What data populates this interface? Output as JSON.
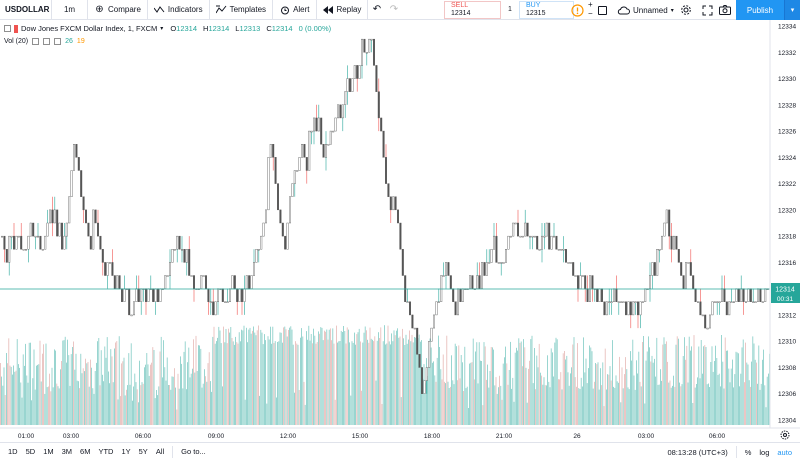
{
  "toolbar": {
    "symbol": "USDOLLAR",
    "interval": "1m",
    "compare": "Compare",
    "indicators": "Indicators",
    "templates": "Templates",
    "alert": "Alert",
    "replay": "Replay",
    "sell_label": "SELL",
    "sell_price": "12314",
    "spread": "1",
    "buy_label": "BUY",
    "buy_price": "12315",
    "layout_name": "Unnamed",
    "publish": "Publish"
  },
  "legend": {
    "title": "Dow Jones FXCM Dollar Index, 1, FXCM",
    "o_label": "O",
    "o": "12314",
    "h_label": "H",
    "h": "12314",
    "l_label": "L",
    "l": "12313",
    "c_label": "C",
    "c": "12314",
    "change": "0 (0.00%)",
    "vol_label": "Vol (20)",
    "vol_val1": "26",
    "vol_val2": "19"
  },
  "price_axis": {
    "ticks": [
      "12334",
      "12332",
      "12330",
      "12328",
      "12326",
      "12324",
      "12322",
      "12320",
      "12318",
      "12316",
      "12314",
      "12312",
      "12310",
      "12308",
      "12306",
      "12304"
    ],
    "current_price": "12314",
    "countdown": "00:31"
  },
  "time_axis": {
    "ticks": [
      "01:00",
      "03:00",
      "06:00",
      "09:00",
      "12:00",
      "15:00",
      "18:00",
      "21:00",
      "26",
      "03:00",
      "06:00"
    ]
  },
  "chart_data": {
    "type": "candlestick",
    "ylim": [
      12303,
      12335
    ],
    "last_price": 12314,
    "close_path": [
      [
        0,
        12318
      ],
      [
        6,
        12317
      ],
      [
        12,
        12318
      ],
      [
        18,
        12318
      ],
      [
        24,
        12317
      ],
      [
        30,
        12318
      ],
      [
        36,
        12318
      ],
      [
        42,
        12317
      ],
      [
        46,
        12318
      ],
      [
        50,
        12320
      ],
      [
        54,
        12319
      ],
      [
        58,
        12318
      ],
      [
        62,
        12317
      ],
      [
        66,
        12318
      ],
      [
        70,
        12322
      ],
      [
        74,
        12325
      ],
      [
        78,
        12323
      ],
      [
        82,
        12321
      ],
      [
        86,
        12319
      ],
      [
        90,
        12318
      ],
      [
        94,
        12320
      ],
      [
        98,
        12318
      ],
      [
        102,
        12317
      ],
      [
        106,
        12316
      ],
      [
        110,
        12316
      ],
      [
        114,
        12314
      ],
      [
        118,
        12315
      ],
      [
        122,
        12313
      ],
      [
        126,
        12314
      ],
      [
        130,
        12312
      ],
      [
        134,
        12313
      ],
      [
        138,
        12314
      ],
      [
        142,
        12314
      ],
      [
        146,
        12313
      ],
      [
        150,
        12314
      ],
      [
        154,
        12314
      ],
      [
        158,
        12313
      ],
      [
        162,
        12314
      ],
      [
        166,
        12315
      ],
      [
        170,
        12316
      ],
      [
        174,
        12317
      ],
      [
        178,
        12318
      ],
      [
        182,
        12317
      ],
      [
        186,
        12316
      ],
      [
        190,
        12315
      ],
      [
        194,
        12314
      ],
      [
        198,
        12314
      ],
      [
        202,
        12315
      ],
      [
        206,
        12314
      ],
      [
        210,
        12313
      ],
      [
        214,
        12312
      ],
      [
        218,
        12314
      ],
      [
        222,
        12314
      ],
      [
        226,
        12313
      ],
      [
        230,
        12314
      ],
      [
        234,
        12315
      ],
      [
        238,
        12314
      ],
      [
        242,
        12313
      ],
      [
        246,
        12314
      ],
      [
        250,
        12315
      ],
      [
        254,
        12316
      ],
      [
        258,
        12317
      ],
      [
        262,
        12318
      ],
      [
        266,
        12320
      ],
      [
        270,
        12326
      ],
      [
        274,
        12323
      ],
      [
        278,
        12320
      ],
      [
        282,
        12318
      ],
      [
        286,
        12318
      ],
      [
        290,
        12321
      ],
      [
        294,
        12322
      ],
      [
        298,
        12323
      ],
      [
        302,
        12325
      ],
      [
        306,
        12324
      ],
      [
        310,
        12326
      ],
      [
        314,
        12327
      ],
      [
        318,
        12326
      ],
      [
        322,
        12325
      ],
      [
        326,
        12324
      ],
      [
        330,
        12325
      ],
      [
        334,
        12326
      ],
      [
        338,
        12328
      ],
      [
        342,
        12327
      ],
      [
        346,
        12330
      ],
      [
        350,
        12329
      ],
      [
        354,
        12331
      ],
      [
        358,
        12330
      ],
      [
        362,
        12333
      ],
      [
        366,
        12331
      ],
      [
        370,
        12334
      ],
      [
        374,
        12331
      ],
      [
        378,
        12328
      ],
      [
        382,
        12325
      ],
      [
        386,
        12322
      ],
      [
        390,
        12320
      ],
      [
        394,
        12321
      ],
      [
        398,
        12319
      ],
      [
        402,
        12315
      ],
      [
        406,
        12313
      ],
      [
        410,
        12312
      ],
      [
        414,
        12311
      ],
      [
        418,
        12309
      ],
      [
        422,
        12306
      ],
      [
        426,
        12308
      ],
      [
        430,
        12310
      ],
      [
        434,
        12312
      ],
      [
        438,
        12313
      ],
      [
        442,
        12315
      ],
      [
        446,
        12316
      ],
      [
        450,
        12315
      ],
      [
        454,
        12313
      ],
      [
        458,
        12314
      ],
      [
        462,
        12313
      ],
      [
        466,
        12314
      ],
      [
        470,
        12315
      ],
      [
        474,
        12314
      ],
      [
        478,
        12315
      ],
      [
        482,
        12316
      ],
      [
        486,
        12315
      ],
      [
        490,
        12316
      ],
      [
        494,
        12317
      ],
      [
        498,
        12316
      ],
      [
        502,
        12316
      ],
      [
        506,
        12317
      ],
      [
        510,
        12318
      ],
      [
        514,
        12319
      ],
      [
        518,
        12318
      ],
      [
        522,
        12318
      ],
      [
        526,
        12319
      ],
      [
        530,
        12318
      ],
      [
        534,
        12318
      ],
      [
        538,
        12317
      ],
      [
        542,
        12318
      ],
      [
        546,
        12318
      ],
      [
        550,
        12317
      ],
      [
        554,
        12318
      ],
      [
        558,
        12317
      ],
      [
        562,
        12317
      ],
      [
        566,
        12316
      ],
      [
        570,
        12316
      ],
      [
        574,
        12315
      ],
      [
        578,
        12314
      ],
      [
        582,
        12315
      ],
      [
        586,
        12314
      ],
      [
        590,
        12315
      ],
      [
        594,
        12314
      ],
      [
        598,
        12314
      ],
      [
        602,
        12313
      ],
      [
        606,
        12313
      ],
      [
        610,
        12313
      ],
      [
        614,
        12314
      ],
      [
        618,
        12313
      ],
      [
        622,
        12313
      ],
      [
        626,
        12312
      ],
      [
        630,
        12313
      ],
      [
        634,
        12313
      ],
      [
        638,
        12312
      ],
      [
        642,
        12313
      ],
      [
        646,
        12314
      ],
      [
        650,
        12315
      ],
      [
        654,
        12316
      ],
      [
        658,
        12317
      ],
      [
        662,
        12318
      ],
      [
        666,
        12320
      ],
      [
        670,
        12317
      ],
      [
        674,
        12318
      ],
      [
        678,
        12316
      ],
      [
        682,
        12315
      ],
      [
        686,
        12316
      ],
      [
        690,
        12316
      ],
      [
        694,
        12313
      ],
      [
        698,
        12313
      ],
      [
        702,
        12312
      ],
      [
        706,
        12311
      ],
      [
        710,
        12312
      ],
      [
        714,
        12313
      ],
      [
        718,
        12313
      ],
      [
        722,
        12314
      ],
      [
        726,
        12313
      ],
      [
        730,
        12313
      ],
      [
        734,
        12313
      ],
      [
        738,
        12314
      ],
      [
        742,
        12313
      ],
      [
        746,
        12313
      ],
      [
        750,
        12313
      ],
      [
        754,
        12313
      ],
      [
        758,
        12313
      ],
      [
        762,
        12313
      ],
      [
        766,
        12314
      ]
    ],
    "volume_max": 30
  },
  "bottom": {
    "ranges": [
      "1D",
      "5D",
      "1M",
      "3M",
      "6M",
      "YTD",
      "1Y",
      "5Y",
      "All"
    ],
    "goto": "Go to...",
    "clock": "08:13:28 (UTC+3)",
    "percent": "%",
    "log": "log",
    "auto": "auto"
  },
  "colors": {
    "up": "#26a69a",
    "down": "#ef5350",
    "volume": "#80cbc4",
    "publish": "#2196f3"
  }
}
